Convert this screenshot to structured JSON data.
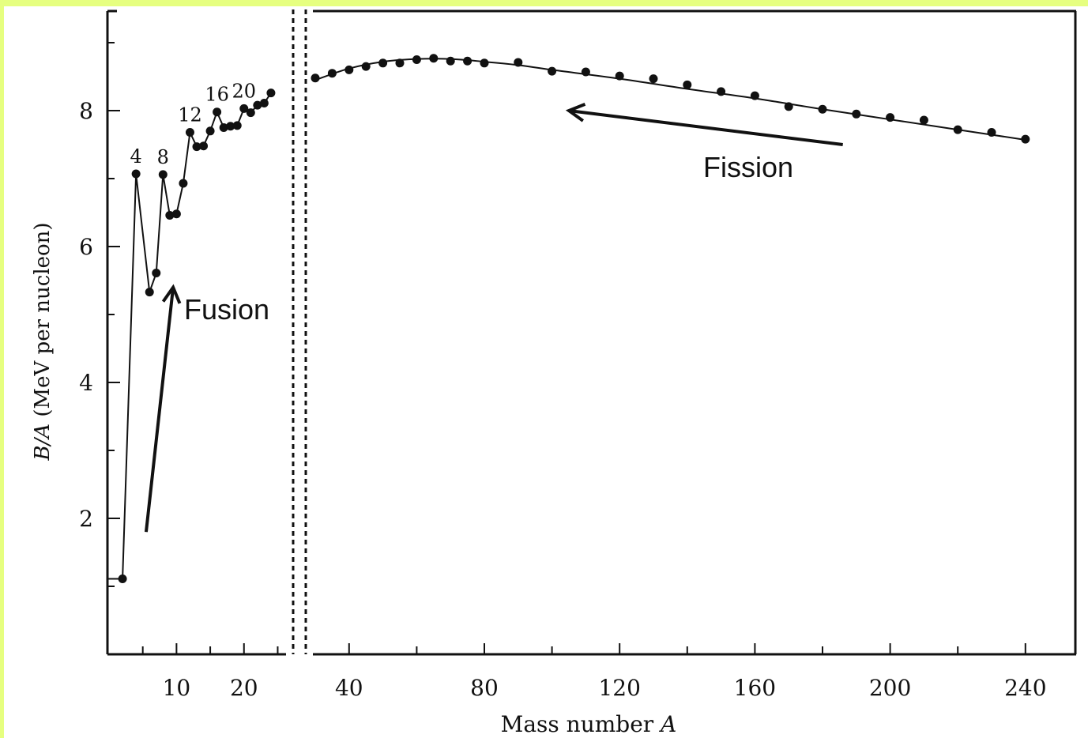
{
  "chart_data": {
    "type": "line",
    "xlabel": "Mass number A",
    "ylabel": "B/A (MeV per nucleon)",
    "ylim": [
      0,
      9.5
    ],
    "y_ticks": [
      2,
      4,
      6,
      8
    ],
    "left_panel": {
      "xlim": [
        0,
        26
      ],
      "x_ticks": [
        10,
        20
      ],
      "x_minor_ticks": [
        5,
        15,
        25
      ]
    },
    "right_panel": {
      "xlim": [
        30,
        255
      ],
      "x_ticks": [
        40,
        80,
        120,
        160,
        200,
        240
      ],
      "x_minor_ticks": [
        60,
        100,
        140,
        180,
        220
      ]
    },
    "series": [
      {
        "panel": "left",
        "x": [
          2,
          4,
          6,
          7,
          8,
          9,
          10,
          11,
          12,
          13,
          14,
          15,
          16,
          17,
          18,
          19,
          20,
          21,
          22,
          23,
          24
        ],
        "y": [
          1.11,
          7.07,
          5.33,
          5.61,
          7.06,
          6.46,
          6.48,
          6.93,
          7.68,
          7.47,
          7.48,
          7.7,
          7.98,
          7.75,
          7.77,
          7.78,
          8.03,
          7.97,
          8.08,
          8.11,
          8.26
        ]
      },
      {
        "panel": "right",
        "x": [
          30,
          35,
          40,
          45,
          50,
          55,
          60,
          65,
          70,
          75,
          80,
          90,
          100,
          110,
          120,
          130,
          140,
          150,
          160,
          170,
          180,
          190,
          200,
          210,
          220,
          230,
          240
        ],
        "y": [
          8.48,
          8.55,
          8.6,
          8.65,
          8.7,
          8.7,
          8.75,
          8.77,
          8.73,
          8.73,
          8.7,
          8.71,
          8.58,
          8.57,
          8.51,
          8.47,
          8.38,
          8.28,
          8.22,
          8.06,
          8.02,
          7.95,
          7.9,
          7.86,
          7.72,
          7.68,
          7.58
        ]
      }
    ],
    "curve": {
      "panel": "right",
      "x": [
        30,
        40,
        50,
        60,
        70,
        80,
        90,
        100,
        120,
        140,
        160,
        180,
        200,
        220,
        240
      ],
      "y": [
        8.45,
        8.62,
        8.72,
        8.76,
        8.76,
        8.72,
        8.67,
        8.6,
        8.47,
        8.32,
        8.18,
        8.02,
        7.87,
        7.72,
        7.57
      ]
    },
    "point_labels": [
      {
        "text": "4",
        "x": 4,
        "y": 7.07
      },
      {
        "text": "8",
        "x": 8,
        "y": 7.06
      },
      {
        "text": "12",
        "x": 12,
        "y": 7.68
      },
      {
        "text": "16",
        "x": 16,
        "y": 7.98
      },
      {
        "text": "20",
        "x": 20,
        "y": 8.03
      }
    ],
    "annotations": [
      {
        "text": "Fusion",
        "panel": "left",
        "x": 9.5,
        "y": 5.1,
        "arrow_from": [
          5.5,
          1.8
        ],
        "arrow_to": [
          9.5,
          5.4
        ]
      },
      {
        "text": "Fission",
        "panel": "right",
        "x": 182,
        "y": 7.45,
        "arrow_from": [
          186,
          7.5
        ],
        "arrow_to": [
          105,
          8.0
        ]
      }
    ]
  }
}
